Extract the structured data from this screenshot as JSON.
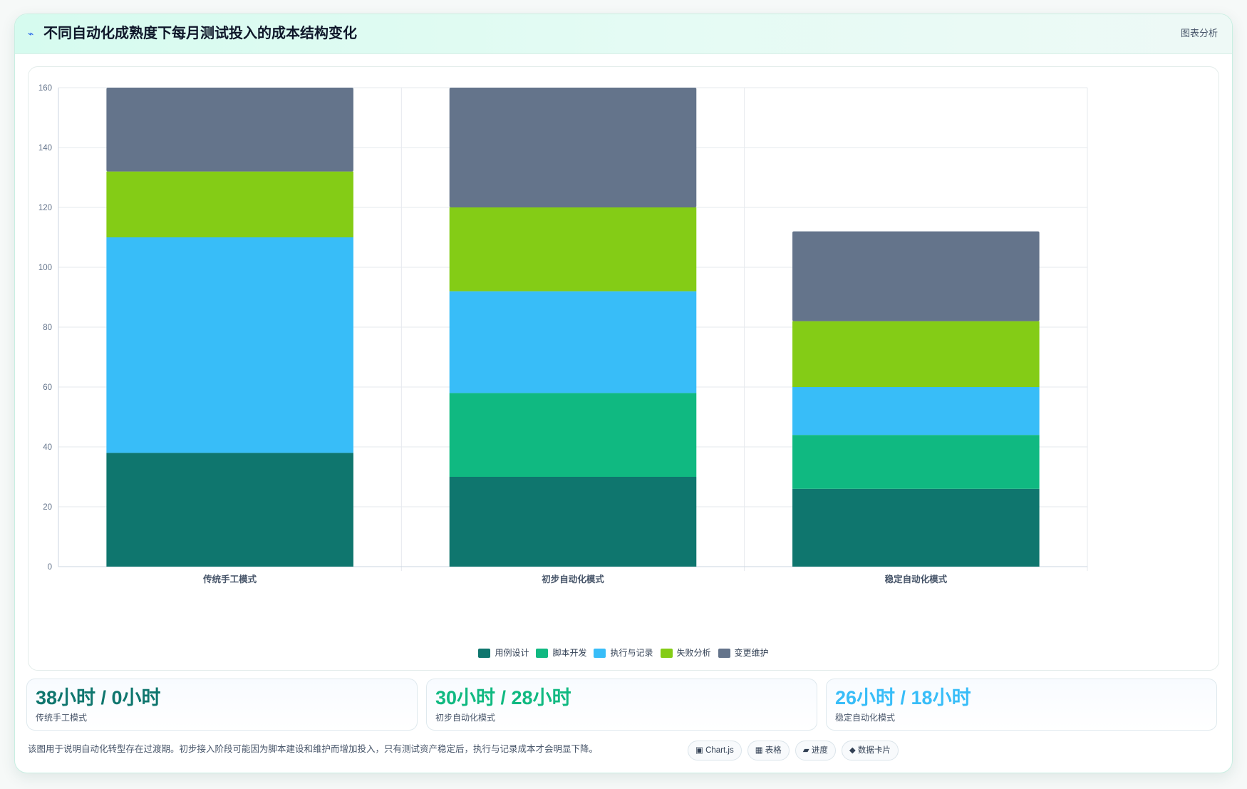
{
  "header": {
    "icon": "flash-icon",
    "title": "不同自动化成熟度下每月测试投入的成本结构变化",
    "action_label": "图表分析"
  },
  "chart_data": {
    "type": "bar",
    "stacked": true,
    "categories": [
      "传统手工模式",
      "初步自动化模式",
      "稳定自动化模式"
    ],
    "series": [
      {
        "name": "用例设计",
        "color": "#0f766e",
        "values": [
          38,
          30,
          26
        ]
      },
      {
        "name": "脚本开发",
        "color": "#10b981",
        "values": [
          0,
          28,
          18
        ]
      },
      {
        "name": "执行与记录",
        "color": "#38bdf8",
        "values": [
          72,
          34,
          16
        ]
      },
      {
        "name": "失败分析",
        "color": "#84cc16",
        "values": [
          22,
          28,
          22
        ]
      },
      {
        "name": "变更维护",
        "color": "#64748b",
        "values": [
          28,
          40,
          30
        ]
      }
    ],
    "ylim": [
      0,
      160
    ],
    "yticks": [
      0,
      20,
      40,
      60,
      80,
      100,
      120,
      140,
      160
    ],
    "grid": true,
    "legend_position": "bottom"
  },
  "stats": [
    {
      "value": "38小时 / 0小时",
      "label": "传统手工模式",
      "color": "#0f766e"
    },
    {
      "value": "30小时 / 28小时",
      "label": "初步自动化模式",
      "color": "#10b981"
    },
    {
      "value": "26小时 / 18小时",
      "label": "稳定自动化模式",
      "color": "#38bdf8"
    }
  ],
  "caption": "该图用于说明自动化转型存在过渡期。初步接入阶段可能因为脚本建设和维护而增加投入，只有测试资产稳定后，执行与记录成本才会明显下降。",
  "chips": [
    {
      "icon": "▣",
      "label": "Chart.js"
    },
    {
      "icon": "▦",
      "label": "表格"
    },
    {
      "icon": "▰",
      "label": "进度"
    },
    {
      "icon": "◆",
      "label": "数据卡片"
    }
  ]
}
